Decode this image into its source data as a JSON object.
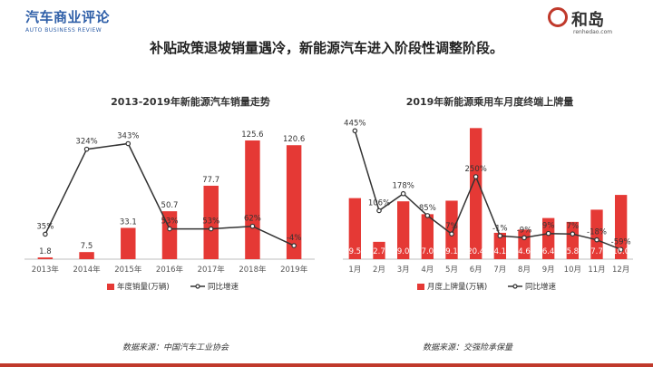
{
  "header": {
    "logo_left_main": "汽车商业评论",
    "logo_left_sub": "AUTO BUSINESS REVIEW",
    "logo_right_name": "和岛",
    "logo_right_url": "renhedao.com",
    "headline": "补贴政策退坡销量遇冷，新能源汽车进入阶段性调整阶段。"
  },
  "colors": {
    "bar": "#e53935",
    "line": "#333333",
    "accent": "#c0392b"
  },
  "chart_data": [
    {
      "type": "bar",
      "title": "2013-2019年新能源汽车销量走势",
      "categories": [
        "2013年",
        "2014年",
        "2015年",
        "2016年",
        "2017年",
        "2018年",
        "2019年"
      ],
      "series": [
        {
          "name": "年度销量(万辆)",
          "type": "bar",
          "values": [
            1.8,
            7.5,
            33.1,
            50.7,
            77.7,
            125.6,
            120.6
          ],
          "labels": [
            "1.8",
            "7.5",
            "33.1",
            "50.7",
            "77.7",
            "125.6",
            "120.6"
          ]
        },
        {
          "name": "同比增速",
          "type": "line",
          "values": [
            35,
            324,
            343,
            53,
            53,
            62,
            -4
          ],
          "labels": [
            "35%",
            "324%",
            "343%",
            "53%",
            "53%",
            "62%",
            "-4%"
          ]
        }
      ],
      "bar_ylim": [
        0,
        140
      ],
      "line_ylim": [
        -50,
        400
      ],
      "legend": "bottom",
      "source": "数据来源：中国汽车工业协会"
    },
    {
      "type": "bar",
      "title": "2019年新能源乘用车月度终端上牌量",
      "categories": [
        "1月",
        "2月",
        "3月",
        "4月",
        "5月",
        "6月",
        "7月",
        "8月",
        "9月",
        "10月",
        "11月",
        "12月"
      ],
      "series": [
        {
          "name": "月度上牌量(万辆)",
          "type": "bar",
          "values": [
            9.5,
            2.7,
            9.0,
            7.0,
            9.1,
            20.4,
            4.1,
            4.6,
            6.4,
            5.8,
            7.7,
            10.0
          ],
          "labels": [
            "9.5",
            "2.7",
            "9.0",
            "7.0",
            "9.1",
            "20.4",
            "4.1",
            "4.6",
            "6.4",
            "5.8",
            "7.7",
            "10.0"
          ]
        },
        {
          "name": "同比增速",
          "type": "line",
          "values": [
            445,
            106,
            178,
            85,
            7,
            250,
            -1,
            -9,
            9,
            7,
            -18,
            -59
          ],
          "labels": [
            "445%",
            "106%",
            "178%",
            "85%",
            "7%",
            "250%",
            "-1%",
            "-9%",
            "9%",
            "7%",
            "-18%",
            "-59%"
          ]
        }
      ],
      "bar_ylim": [
        0,
        22
      ],
      "line_ylim": [
        -100,
        500
      ],
      "legend": "bottom",
      "source": "数据来源：交强险承保量"
    }
  ]
}
